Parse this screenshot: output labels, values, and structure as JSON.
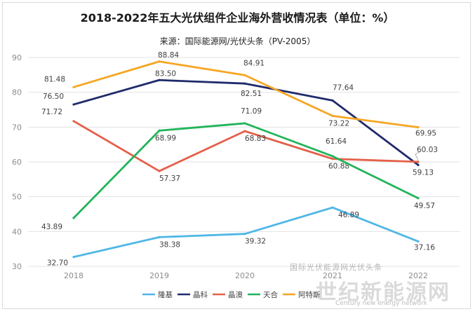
{
  "title": "2018-2022年五大光伏组件企业海外营收情况表（单位：%）",
  "subtitle": "来源：国际能源网/光伏头条（PV-2005）",
  "watermark": {
    "line1": "国际光伏能源网光伏头条",
    "line2": "世纪新能源网",
    "line3": "Century new energy network"
  },
  "chart_data": {
    "type": "line",
    "categories": [
      "2018",
      "2019",
      "2020",
      "2021",
      "2022"
    ],
    "ylim": [
      30,
      90
    ],
    "yticks": [
      30,
      40,
      50,
      60,
      70,
      80,
      90
    ],
    "grid": true,
    "legend": "bottom",
    "series": [
      {
        "name": "隆基",
        "color": "#4fb7e6",
        "values": [
          32.7,
          38.38,
          39.32,
          46.89,
          37.16
        ],
        "labels": [
          "32.70",
          "38.38",
          "39.32",
          "46.89",
          "37.16"
        ]
      },
      {
        "name": "晶科",
        "color": "#1f2a6b",
        "values": [
          76.5,
          83.5,
          82.51,
          77.64,
          59.13
        ],
        "labels": [
          "76.50",
          "83.50",
          "82.51",
          "77.64",
          "59.13"
        ]
      },
      {
        "name": "晶澳",
        "color": "#e4604a",
        "values": [
          71.72,
          57.37,
          68.83,
          60.88,
          60.03
        ],
        "labels": [
          "71.72",
          "57.37",
          "68.83",
          "60.88",
          "60.03"
        ]
      },
      {
        "name": "天合",
        "color": "#22b45a",
        "values": [
          43.89,
          68.99,
          71.09,
          61.64,
          49.57
        ],
        "labels": [
          "43.89",
          "68.99",
          "71.09",
          "61.64",
          "49.57"
        ]
      },
      {
        "name": "阿特斯",
        "color": "#f5a623",
        "values": [
          81.48,
          88.84,
          84.91,
          73.22,
          69.95
        ],
        "labels": [
          "81.48",
          "88.84",
          "84.91",
          "73.22",
          "69.95"
        ]
      }
    ]
  }
}
